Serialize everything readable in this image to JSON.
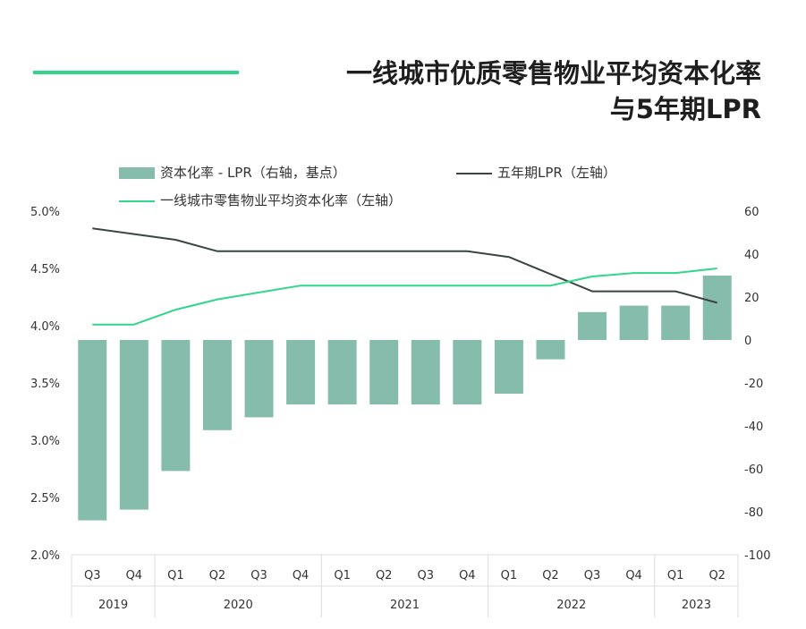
{
  "header": {
    "title_line1": "一线城市优质零售物业平均资本化率",
    "title_line2": "与5年期LPR"
  },
  "legend": {
    "bar": "资本化率 - LPR（右轴，基点）",
    "lpr": "五年期LPR（左轴）",
    "cap": "一线城市零售物业平均资本化率（左轴）"
  },
  "colors": {
    "bar": "#86bcab",
    "lpr": "#3b4543",
    "cap": "#2fd68b",
    "accent": "#2fd68b"
  },
  "chart_data": {
    "type": "bar",
    "categories": [
      "Q3",
      "Q4",
      "Q1",
      "Q2",
      "Q3",
      "Q4",
      "Q1",
      "Q2",
      "Q3",
      "Q4",
      "Q1",
      "Q2",
      "Q3",
      "Q4",
      "Q1",
      "Q2"
    ],
    "years": [
      {
        "label": "2019",
        "span": 2
      },
      {
        "label": "2020",
        "span": 4
      },
      {
        "label": "2021",
        "span": 4
      },
      {
        "label": "2022",
        "span": 4
      },
      {
        "label": "2023",
        "span": 2
      }
    ],
    "series": [
      {
        "name": "资本化率 - LPR（右轴，基点）",
        "axis": "right",
        "kind": "bar",
        "values": [
          -84,
          -79,
          -61,
          -42,
          -36,
          -30,
          -30,
          -30,
          -30,
          -30,
          -25,
          -9,
          13,
          16,
          16,
          30
        ]
      },
      {
        "name": "五年期LPR（左轴）",
        "axis": "left",
        "kind": "line",
        "values": [
          4.85,
          4.8,
          4.75,
          4.65,
          4.65,
          4.65,
          4.65,
          4.65,
          4.65,
          4.65,
          4.6,
          4.45,
          4.3,
          4.3,
          4.3,
          4.2
        ]
      },
      {
        "name": "一线城市零售物业平均资本化率（左轴）",
        "axis": "left",
        "kind": "line",
        "values": [
          4.01,
          4.01,
          4.14,
          4.23,
          4.29,
          4.35,
          4.35,
          4.35,
          4.35,
          4.35,
          4.35,
          4.35,
          4.43,
          4.46,
          4.46,
          4.5
        ]
      }
    ],
    "left_axis": {
      "ylim": [
        2.0,
        5.0
      ],
      "ticks": [
        "2.0%",
        "2.5%",
        "3.0%",
        "3.5%",
        "4.0%",
        "4.5%",
        "5.0%"
      ],
      "tick_values": [
        2.0,
        2.5,
        3.0,
        3.5,
        4.0,
        4.5,
        5.0
      ]
    },
    "right_axis": {
      "ylim": [
        -100,
        60
      ],
      "ticks": [
        "-100",
        "-80",
        "-60",
        "-40",
        "-20",
        "0",
        "20",
        "40",
        "60"
      ],
      "tick_values": [
        -100,
        -80,
        -60,
        -40,
        -20,
        0,
        20,
        40,
        60
      ]
    },
    "grid": false,
    "legend_position": "top"
  }
}
